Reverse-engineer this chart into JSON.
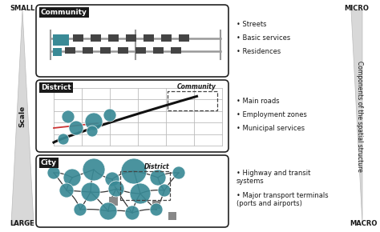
{
  "bg_color": "#ffffff",
  "teal_color": "#3a8a96",
  "dark_color": "#1a1a1a",
  "gray_color": "#888888",
  "light_gray": "#cccccc",
  "panel_edge": "#222222",
  "community_label": "Community",
  "district_label": "District",
  "city_label": "City",
  "community_bullets": [
    "Streets",
    "Basic services",
    "Residences"
  ],
  "district_bullets": [
    "Main roads",
    "Employment zones",
    "Municipal services"
  ],
  "city_bullets_1": "Highway and transit\nsystems",
  "city_bullets_2": "Major transport terminals\n(ports and airports)",
  "scale_label": "Scale",
  "small_label": "SMALL",
  "large_label": "LARGE",
  "micro_label": "MICRO",
  "macro_label": "MACRO",
  "right_label": "Components of the spatial structure",
  "community_ref": "Community",
  "district_ref": "District"
}
